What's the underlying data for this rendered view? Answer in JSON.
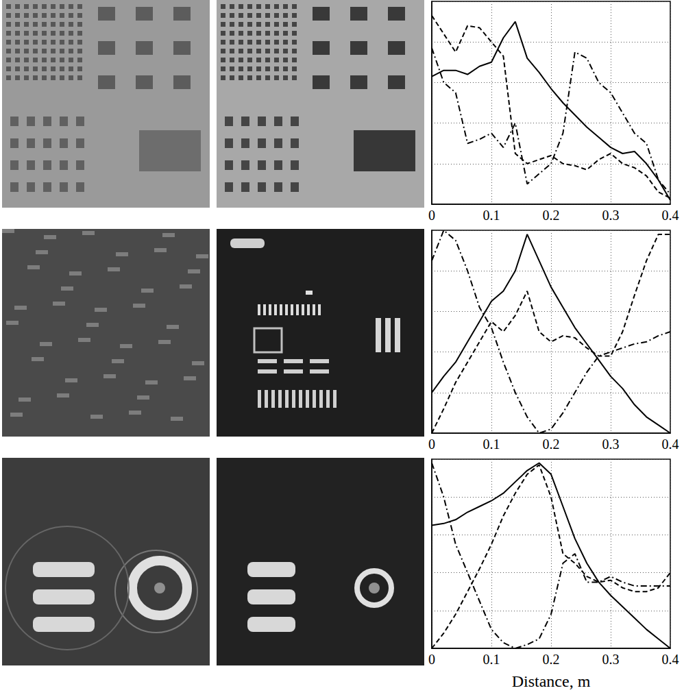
{
  "chart_data": [
    {
      "type": "line",
      "x": [
        0,
        0.02,
        0.04,
        0.06,
        0.08,
        0.1,
        0.12,
        0.14,
        0.16,
        0.18,
        0.2,
        0.22,
        0.24,
        0.26,
        0.28,
        0.3,
        0.32,
        0.34,
        0.36,
        0.38,
        0.4
      ],
      "series": [
        {
          "color": "#000000",
          "line_style": "solid",
          "values": [
            0.63,
            0.66,
            0.66,
            0.64,
            0.68,
            0.7,
            0.82,
            0.9,
            0.72,
            0.65,
            0.57,
            0.5,
            0.44,
            0.38,
            0.33,
            0.28,
            0.25,
            0.26,
            0.2,
            0.12,
            0.02
          ]
        },
        {
          "color": "#000000",
          "line_style": "dashed",
          "values": [
            0.93,
            0.84,
            0.75,
            0.88,
            0.87,
            0.8,
            0.73,
            0.25,
            0.2,
            0.22,
            0.24,
            0.2,
            0.19,
            0.17,
            0.22,
            0.25,
            0.2,
            0.18,
            0.14,
            0.06,
            0.03
          ]
        },
        {
          "color": "#000000",
          "line_style": "dashdot",
          "values": [
            0.77,
            0.6,
            0.55,
            0.3,
            0.32,
            0.35,
            0.28,
            0.4,
            0.1,
            0.15,
            0.2,
            0.35,
            0.75,
            0.72,
            0.6,
            0.55,
            0.45,
            0.35,
            0.3,
            0.12,
            0.05
          ]
        }
      ],
      "xlim": [
        0,
        0.4
      ],
      "xticks": [
        0,
        0.1,
        0.2,
        0.3,
        0.4
      ],
      "ylim": [
        0,
        1
      ],
      "yticks": [
        0,
        0.2,
        0.4,
        0.6,
        0.8,
        1
      ],
      "grid": true,
      "tick_labels": "x"
    },
    {
      "type": "line",
      "x": [
        0,
        0.02,
        0.04,
        0.06,
        0.08,
        0.1,
        0.12,
        0.14,
        0.16,
        0.18,
        0.2,
        0.22,
        0.24,
        0.26,
        0.28,
        0.3,
        0.32,
        0.34,
        0.36,
        0.38,
        0.4
      ],
      "series": [
        {
          "color": "#000000",
          "line_style": "solid",
          "values": [
            0.2,
            0.28,
            0.35,
            0.45,
            0.55,
            0.65,
            0.7,
            0.8,
            0.98,
            0.85,
            0.72,
            0.62,
            0.52,
            0.44,
            0.36,
            0.28,
            0.22,
            0.14,
            0.08,
            0.04,
            0.0
          ]
        },
        {
          "color": "#000000",
          "line_style": "dashed",
          "values": [
            0.0,
            0.12,
            0.25,
            0.35,
            0.45,
            0.55,
            0.5,
            0.58,
            0.7,
            0.5,
            0.45,
            0.48,
            0.47,
            0.42,
            0.38,
            0.38,
            0.5,
            0.68,
            0.85,
            0.98,
            0.98
          ]
        },
        {
          "color": "#000000",
          "line_style": "dashdot",
          "values": [
            0.85,
            1.0,
            0.95,
            0.8,
            0.62,
            0.52,
            0.35,
            0.2,
            0.08,
            0.0,
            0.02,
            0.1,
            0.2,
            0.3,
            0.38,
            0.4,
            0.42,
            0.44,
            0.45,
            0.48,
            0.5
          ]
        }
      ],
      "xlim": [
        0,
        0.4
      ],
      "xticks": [
        0,
        0.1,
        0.2,
        0.3,
        0.4
      ],
      "ylim": [
        0,
        1
      ],
      "yticks": [
        0,
        0.2,
        0.4,
        0.6,
        0.8,
        1
      ],
      "grid": true,
      "tick_labels": "x"
    },
    {
      "type": "line",
      "xlabel": "Distance, m",
      "x": [
        0,
        0.02,
        0.04,
        0.06,
        0.08,
        0.1,
        0.12,
        0.14,
        0.16,
        0.18,
        0.2,
        0.22,
        0.24,
        0.26,
        0.28,
        0.3,
        0.32,
        0.34,
        0.36,
        0.38,
        0.4
      ],
      "series": [
        {
          "color": "#000000",
          "line_style": "solid",
          "values": [
            0.65,
            0.66,
            0.68,
            0.72,
            0.75,
            0.78,
            0.82,
            0.88,
            0.94,
            0.98,
            0.92,
            0.75,
            0.58,
            0.45,
            0.35,
            0.28,
            0.22,
            0.16,
            0.1,
            0.05,
            0.0
          ]
        },
        {
          "color": "#000000",
          "line_style": "dashed",
          "values": [
            0.0,
            0.08,
            0.18,
            0.3,
            0.42,
            0.55,
            0.7,
            0.82,
            0.92,
            0.97,
            0.8,
            0.5,
            0.45,
            0.38,
            0.35,
            0.36,
            0.32,
            0.3,
            0.3,
            0.32,
            0.4
          ]
        },
        {
          "color": "#000000",
          "line_style": "dashdot",
          "values": [
            0.98,
            0.8,
            0.55,
            0.4,
            0.25,
            0.1,
            0.03,
            0.0,
            0.02,
            0.05,
            0.18,
            0.45,
            0.5,
            0.35,
            0.35,
            0.38,
            0.35,
            0.33,
            0.33,
            0.33,
            0.33
          ]
        }
      ],
      "xlim": [
        0,
        0.4
      ],
      "xticks": [
        0,
        0.1,
        0.2,
        0.3,
        0.4
      ],
      "ylim": [
        0,
        1
      ],
      "yticks": [
        0,
        0.2,
        0.4,
        0.6,
        0.8,
        1
      ],
      "grid": true,
      "tick_labels": "x"
    }
  ]
}
